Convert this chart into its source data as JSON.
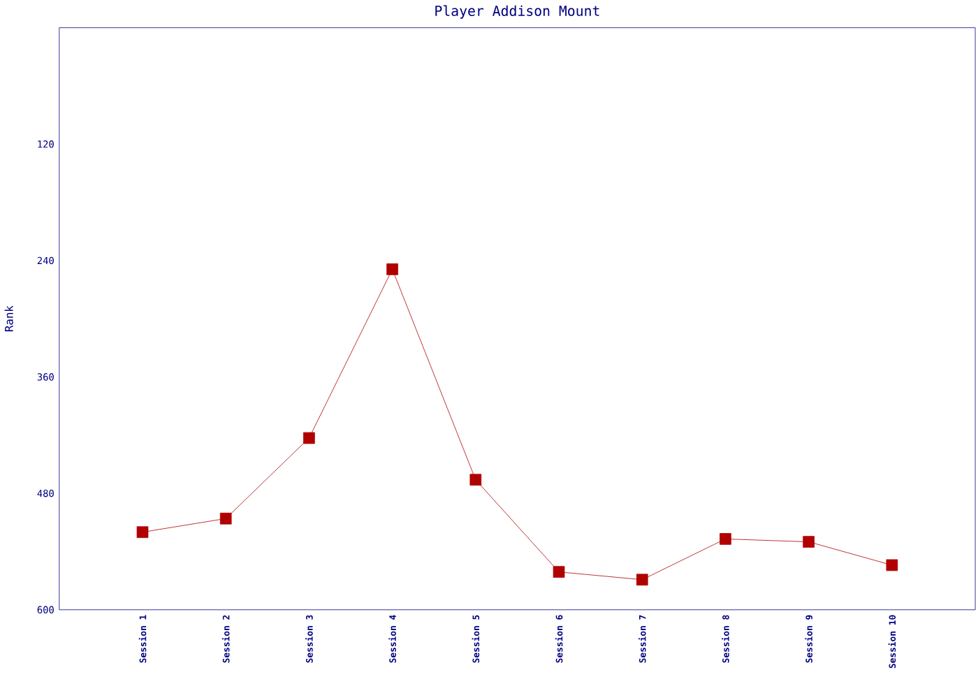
{
  "chart_data": {
    "type": "line",
    "title": "Player Addison Mount",
    "ylabel": "Rank",
    "categories": [
      "Session 1",
      "Session 2",
      "Session 3",
      "Session 4",
      "Session 5",
      "Session 6",
      "Session 7",
      "Session 8",
      "Session 9",
      "Session 10"
    ],
    "series": [
      {
        "color": "#b00000",
        "values": [
          520,
          506,
          423,
          249,
          466,
          561,
          569,
          527,
          530,
          554
        ]
      }
    ],
    "ylim": [
      600,
      0
    ],
    "yticks": [
      120,
      240,
      360,
      480,
      600
    ],
    "marker": "square"
  }
}
